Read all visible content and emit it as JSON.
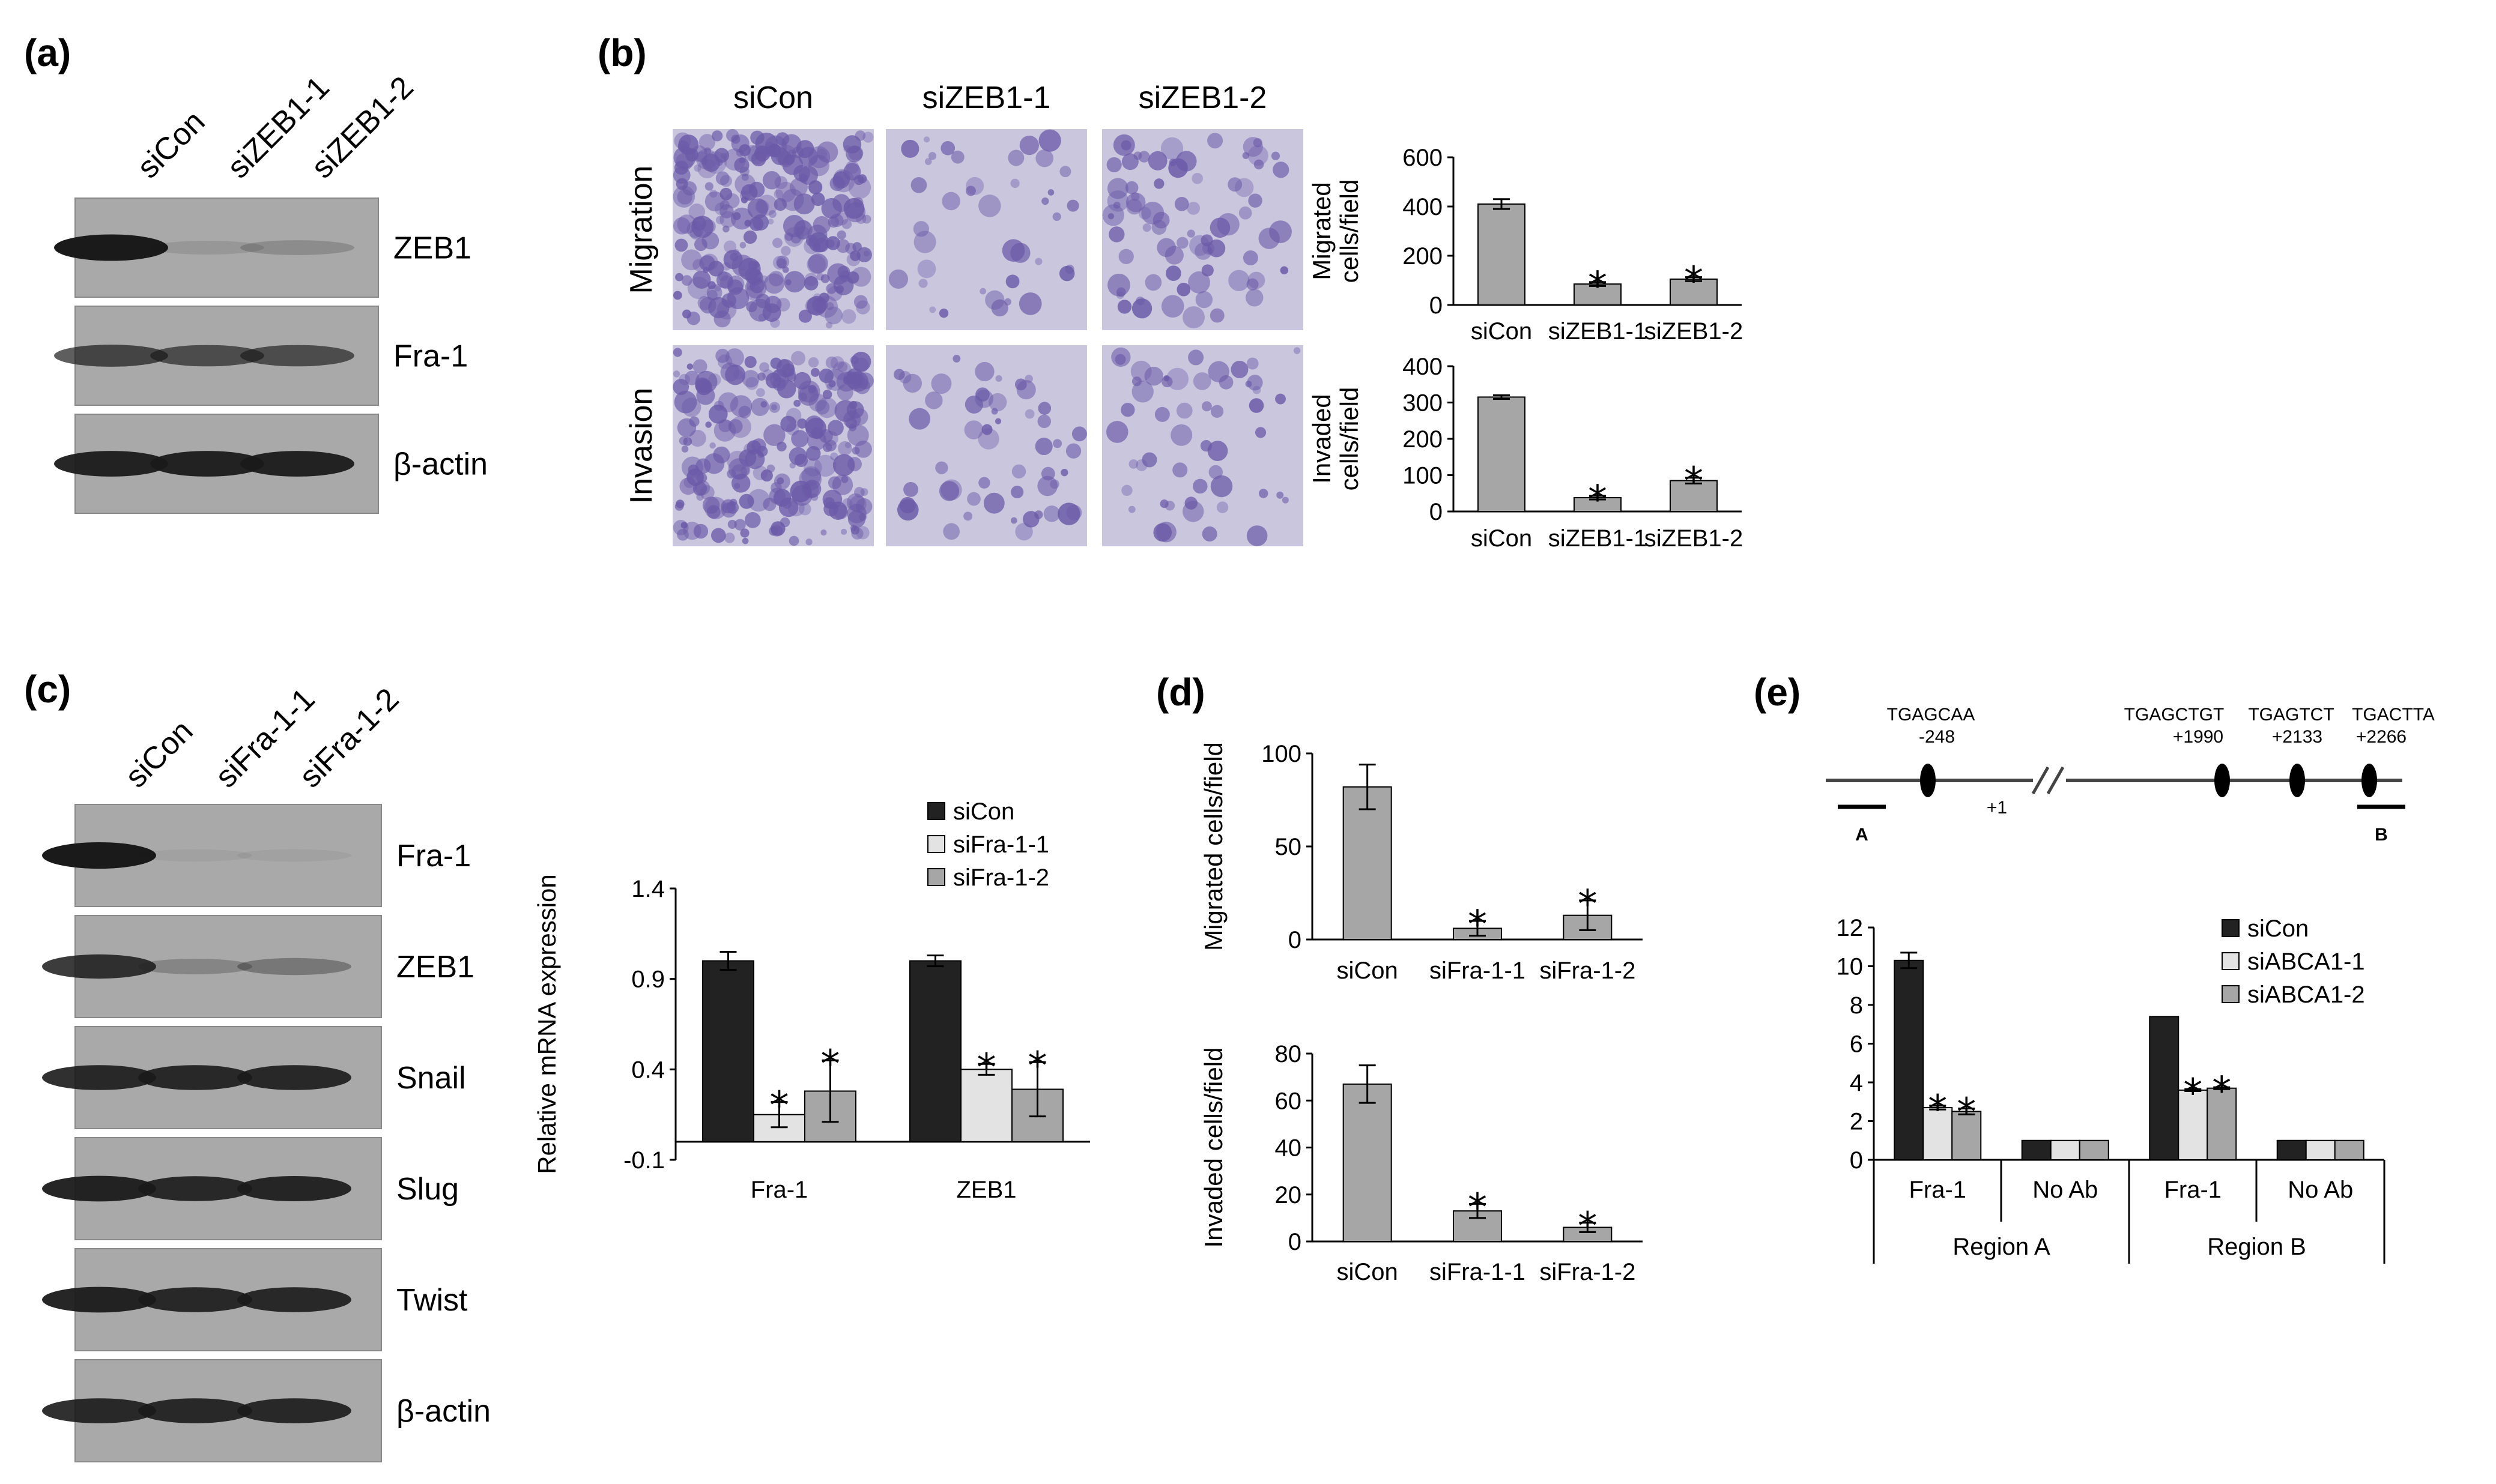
{
  "colors": {
    "dark": "#222222",
    "light": "#e3e3e3",
    "mid": "#a6a6a6",
    "blot_bg": "#a9a9a9",
    "blot_band": "#1a1a1a",
    "stain_bg": "#c9c6de",
    "stain_cell": "#6b5aa8"
  },
  "panels": {
    "a": {
      "letter": "(a)",
      "lanes": [
        "siCon",
        "siZEB1-1",
        "siZEB1-2"
      ],
      "blots": [
        {
          "label": "ZEB1",
          "intensity": [
            1.0,
            0.12,
            0.2
          ]
        },
        {
          "label": "Fra-1",
          "intensity": [
            0.7,
            0.65,
            0.65
          ]
        },
        {
          "label": "β-actin",
          "intensity": [
            0.95,
            0.95,
            0.95
          ]
        }
      ]
    },
    "b": {
      "letter": "(b)",
      "columns": [
        "siCon",
        "siZEB1-1",
        "siZEB1-2"
      ],
      "rows": [
        "Migration",
        "Invasion"
      ],
      "cell_density": [
        [
          1.0,
          0.15,
          0.3
        ],
        [
          0.9,
          0.2,
          0.2
        ]
      ]
    },
    "c": {
      "letter": "(c)",
      "lanes": [
        "siCon",
        "siFra-1-1",
        "siFra-1-2"
      ],
      "blots": [
        {
          "label": "Fra-1",
          "intensity": [
            1.0,
            0.02,
            0.03
          ]
        },
        {
          "label": "ZEB1",
          "intensity": [
            0.85,
            0.25,
            0.35
          ]
        },
        {
          "label": "Snail",
          "intensity": [
            0.9,
            0.9,
            0.9
          ]
        },
        {
          "label": "Slug",
          "intensity": [
            0.95,
            0.9,
            0.92
          ]
        },
        {
          "label": "Twist",
          "intensity": [
            0.95,
            0.9,
            0.9
          ]
        },
        {
          "label": "β-actin",
          "intensity": [
            0.9,
            0.9,
            0.9
          ]
        }
      ]
    },
    "d": {
      "letter": "(d)"
    },
    "e": {
      "letter": "(e)",
      "sites": [
        {
          "seq": "TGAGCAA",
          "pos": "-248"
        },
        {
          "seq": "TGAGCTGT",
          "pos": "+1990"
        },
        {
          "seq": "TGAGTCT",
          "pos": "+2133"
        },
        {
          "seq": "TGACTTA",
          "pos": "+2266"
        }
      ],
      "tss": "+1",
      "region_a": "A",
      "region_b": "B"
    }
  },
  "chart_data": [
    {
      "id": "b_migration",
      "type": "bar",
      "ylabel": "Migrated cells/field",
      "categories": [
        "siCon",
        "siZEB1-1",
        "siZEB1-2"
      ],
      "values": [
        410,
        85,
        105
      ],
      "errors": [
        20,
        8,
        8
      ],
      "significant": [
        false,
        true,
        true
      ],
      "ylim": [
        0,
        600
      ],
      "yticks": [
        0,
        200,
        400,
        600
      ],
      "star": "*"
    },
    {
      "id": "b_invasion",
      "type": "bar",
      "ylabel": "Invaded cells/field",
      "categories": [
        "siCon",
        "siZEB1-1",
        "siZEB1-2"
      ],
      "values": [
        315,
        38,
        85
      ],
      "errors": [
        5,
        5,
        8
      ],
      "significant": [
        false,
        true,
        true
      ],
      "ylim": [
        0,
        400
      ],
      "yticks": [
        0,
        100,
        200,
        300,
        400
      ],
      "star": "*"
    },
    {
      "id": "c_mrna",
      "type": "bar",
      "ylabel": "Relative mRNA expression",
      "categories": [
        "Fra-1",
        "ZEB1"
      ],
      "series": [
        {
          "name": "siCon",
          "values": [
            1.0,
            1.0
          ],
          "errors": [
            0.05,
            0.03
          ],
          "significant": [
            false,
            false
          ]
        },
        {
          "name": "siFra-1-1",
          "values": [
            0.15,
            0.4
          ],
          "errors": [
            0.07,
            0.03
          ],
          "significant": [
            true,
            true
          ]
        },
        {
          "name": "siFra-1-2",
          "values": [
            0.28,
            0.29
          ],
          "errors": [
            0.17,
            0.15
          ],
          "significant": [
            true,
            true
          ]
        }
      ],
      "ylim": [
        -0.1,
        1.4
      ],
      "yticks": [
        -0.1,
        0.4,
        0.9,
        1.4
      ],
      "star": "*"
    },
    {
      "id": "d_migration",
      "type": "bar",
      "ylabel": "Migrated cells/field",
      "categories": [
        "siCon",
        "siFra-1-1",
        "siFra-1-2"
      ],
      "values": [
        82,
        6,
        13
      ],
      "errors": [
        12,
        4,
        8
      ],
      "significant": [
        false,
        true,
        true
      ],
      "ylim": [
        0,
        100
      ],
      "yticks": [
        0,
        50,
        100
      ],
      "star": "*"
    },
    {
      "id": "d_invasion",
      "type": "bar",
      "ylabel": "Invaded cells/field",
      "categories": [
        "siCon",
        "siFra-1-1",
        "siFra-1-2"
      ],
      "values": [
        67,
        13,
        6
      ],
      "errors": [
        8,
        3,
        2
      ],
      "significant": [
        false,
        true,
        true
      ],
      "ylim": [
        0,
        80
      ],
      "yticks": [
        0,
        20,
        40,
        60,
        80
      ],
      "star": "*"
    },
    {
      "id": "e_chip",
      "type": "bar",
      "categories": [
        "Fra-1",
        "No Ab",
        "Fra-1",
        "No Ab"
      ],
      "groups": [
        "Region A",
        "Region B"
      ],
      "series": [
        {
          "name": "siCon",
          "values": [
            10.3,
            1.0,
            7.4,
            1.0
          ],
          "errors": [
            0.4,
            0,
            0,
            0
          ],
          "significant": [
            false,
            false,
            false,
            false
          ]
        },
        {
          "name": "siABCA1-1",
          "values": [
            2.7,
            1.0,
            3.6,
            1.0
          ],
          "errors": [
            0.1,
            0,
            0.05,
            0
          ],
          "significant": [
            true,
            false,
            true,
            false
          ]
        },
        {
          "name": "siABCA1-2",
          "values": [
            2.5,
            1.0,
            3.7,
            1.0
          ],
          "errors": [
            0.15,
            0,
            0.05,
            0
          ],
          "significant": [
            true,
            false,
            true,
            false
          ]
        }
      ],
      "ylim": [
        0,
        12
      ],
      "yticks": [
        0,
        2,
        4,
        6,
        8,
        10,
        12
      ],
      "star": "*"
    }
  ]
}
